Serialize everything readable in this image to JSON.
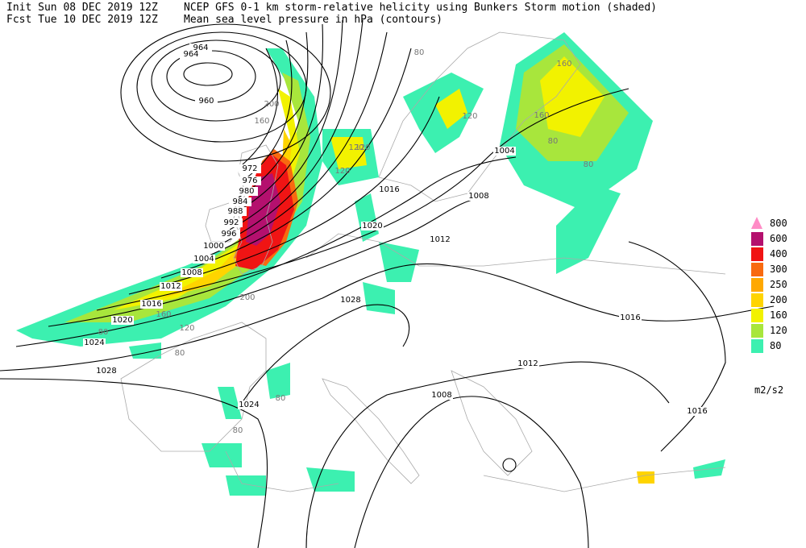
{
  "header": {
    "init": "Init  Sun 08 DEC 2019 12Z",
    "fcst": "Fcst Tue 10 DEC 2019 12Z",
    "title": "NCEP GFS 0-1 km storm-relative helicity using Bunkers Storm motion (shaded)",
    "subtitle": "Mean sea level pressure in hPa (contours)"
  },
  "legend": {
    "levels": [
      "800",
      "600",
      "400",
      "300",
      "250",
      "200",
      "160",
      "120",
      "80"
    ],
    "colors": [
      "#ff8cc6",
      "#b4106e",
      "#f01414",
      "#f86a10",
      "#ffa800",
      "#ffd400",
      "#f2f200",
      "#a8e63c",
      "#3cf0b0"
    ],
    "unit": "m2/s2"
  },
  "isobar_labels": [
    "964",
    "964",
    "960",
    "972",
    "976",
    "980",
    "984",
    "988",
    "992",
    "996",
    "1000",
    "1004",
    "1008",
    "1012",
    "1016",
    "1020",
    "1024",
    "1028",
    "1024",
    "1028",
    "1020",
    "1016",
    "1012",
    "1008",
    "1004",
    "1016",
    "1012",
    "1008",
    "1016"
  ],
  "shading_labels": [
    "200",
    "160",
    "120",
    "160",
    "120",
    "120",
    "160",
    "120",
    "80",
    "80",
    "80",
    "200",
    "160",
    "120",
    "80",
    "80",
    "80",
    "80"
  ]
}
